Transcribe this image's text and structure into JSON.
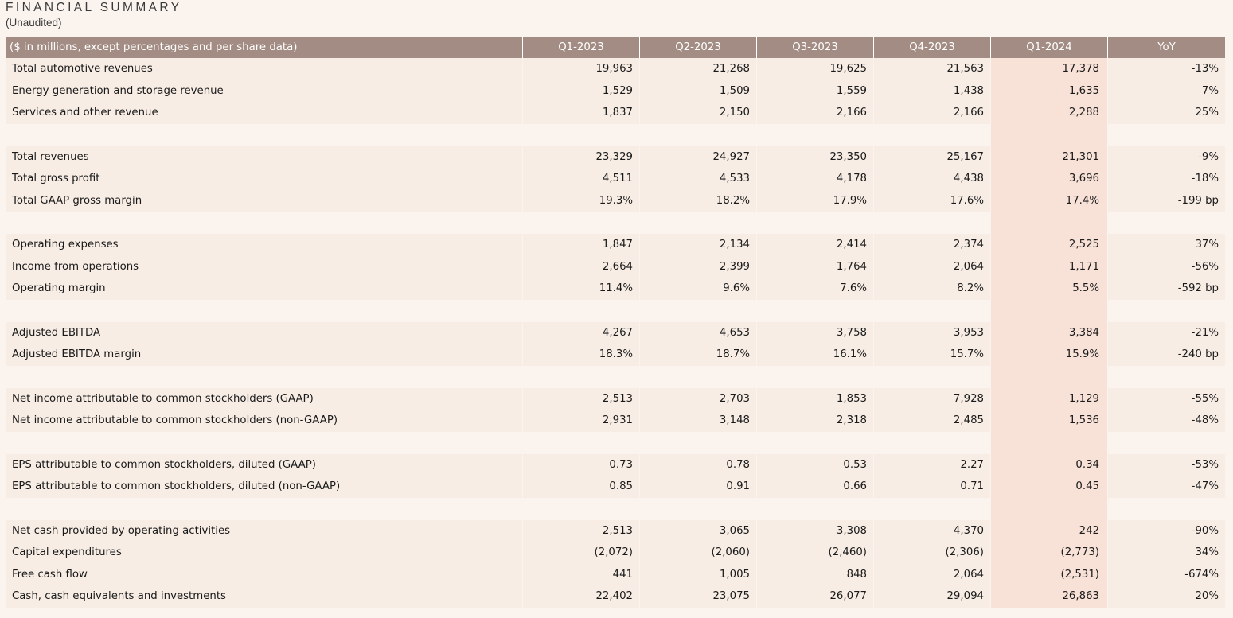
{
  "header": {
    "title": "FINANCIAL SUMMARY",
    "subtitle": "(Unaudited)"
  },
  "table": {
    "columns": [
      "($ in millions, except percentages and per share data)",
      "Q1-2023",
      "Q2-2023",
      "Q3-2023",
      "Q4-2023",
      "Q1-2024",
      "YoY"
    ],
    "groups": [
      [
        {
          "label": "Total automotive revenues",
          "values": [
            "19,963",
            "21,268",
            "19,625",
            "21,563",
            "17,378",
            "-13%"
          ]
        },
        {
          "label": "Energy generation and storage revenue",
          "values": [
            "1,529",
            "1,509",
            "1,559",
            "1,438",
            "1,635",
            "7%"
          ]
        },
        {
          "label": "Services and other revenue",
          "values": [
            "1,837",
            "2,150",
            "2,166",
            "2,166",
            "2,288",
            "25%"
          ]
        }
      ],
      [
        {
          "label": "Total revenues",
          "values": [
            "23,329",
            "24,927",
            "23,350",
            "25,167",
            "21,301",
            "-9%"
          ]
        },
        {
          "label": "Total gross profit",
          "values": [
            "4,511",
            "4,533",
            "4,178",
            "4,438",
            "3,696",
            "-18%"
          ]
        },
        {
          "label": "Total GAAP gross margin",
          "values": [
            "19.3%",
            "18.2%",
            "17.9%",
            "17.6%",
            "17.4%",
            "-199 bp"
          ]
        }
      ],
      [
        {
          "label": "Operating expenses",
          "values": [
            "1,847",
            "2,134",
            "2,414",
            "2,374",
            "2,525",
            "37%"
          ]
        },
        {
          "label": "Income from operations",
          "values": [
            "2,664",
            "2,399",
            "1,764",
            "2,064",
            "1,171",
            "-56%"
          ]
        },
        {
          "label": "Operating margin",
          "values": [
            "11.4%",
            "9.6%",
            "7.6%",
            "8.2%",
            "5.5%",
            "-592 bp"
          ]
        }
      ],
      [
        {
          "label": "Adjusted EBITDA",
          "values": [
            "4,267",
            "4,653",
            "3,758",
            "3,953",
            "3,384",
            "-21%"
          ]
        },
        {
          "label": "Adjusted EBITDA margin",
          "values": [
            "18.3%",
            "18.7%",
            "16.1%",
            "15.7%",
            "15.9%",
            "-240 bp"
          ]
        }
      ],
      [
        {
          "label": "Net income attributable to common stockholders (GAAP)",
          "values": [
            "2,513",
            "2,703",
            "1,853",
            "7,928",
            "1,129",
            "-55%"
          ]
        },
        {
          "label": "Net income attributable to common stockholders (non-GAAP)",
          "values": [
            "2,931",
            "3,148",
            "2,318",
            "2,485",
            "1,536",
            "-48%"
          ]
        }
      ],
      [
        {
          "label": "EPS attributable to common stockholders, diluted (GAAP)",
          "values": [
            "0.73",
            "0.78",
            "0.53",
            "2.27",
            "0.34",
            "-53%"
          ]
        },
        {
          "label": "EPS attributable to common stockholders, diluted (non-GAAP)",
          "values": [
            "0.85",
            "0.91",
            "0.66",
            "0.71",
            "0.45",
            "-47%"
          ]
        }
      ],
      [
        {
          "label": "Net cash provided by operating activities",
          "values": [
            "2,513",
            "3,065",
            "3,308",
            "4,370",
            "242",
            "-90%"
          ]
        },
        {
          "label": "Capital expenditures",
          "values": [
            "(2,072)",
            "(2,060)",
            "(2,460)",
            "(2,306)",
            "(2,773)",
            "34%"
          ]
        },
        {
          "label": "Free cash flow",
          "values": [
            "441",
            "1,005",
            "848",
            "2,064",
            "(2,531)",
            "-674%"
          ]
        },
        {
          "label": "Cash, cash equivalents and investments",
          "values": [
            "22,402",
            "23,075",
            "26,077",
            "29,094",
            "26,863",
            "20%"
          ]
        }
      ]
    ],
    "highlight_column_index": 4,
    "colors": {
      "header_bg": "#a38c83",
      "page_bg": "#fbf4ee",
      "highlight_bg": "#f8e2d8"
    }
  }
}
